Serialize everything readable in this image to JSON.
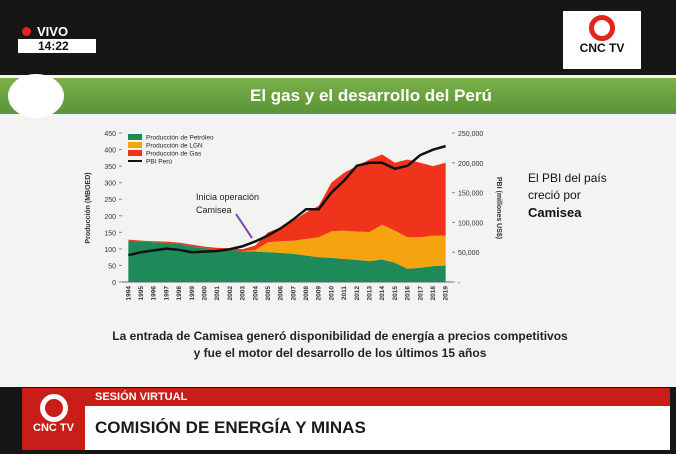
{
  "broadcast": {
    "live": "VIVO",
    "time": "14:22",
    "logo": "CNC TV"
  },
  "slide": {
    "title": "El gas y el desarrollo del Perú",
    "note": [
      "El PBI del país",
      "creció por",
      "Camisea"
    ],
    "caption": [
      "La entrada de Camisea generó disponibilidad de energía a precios competitivos",
      "y fue el motor del desarrollo de los últimos 15 años"
    ]
  },
  "lower_third": {
    "logo": "CNC TV",
    "kicker": "SESIÓN VIRTUAL",
    "headline": "COMISIÓN DE ENERGÍA Y MINAS"
  },
  "chart_data": {
    "type": "stacked_area_line",
    "annotation": [
      "Inicia operación",
      "Camisea"
    ],
    "y_label": "Producción (MBOED)",
    "y2_label": "PBI (millones US$)",
    "categories": [
      "1994",
      "1995",
      "1996",
      "1997",
      "1998",
      "1999",
      "2000",
      "2001",
      "2002",
      "2003",
      "2004",
      "2005",
      "2006",
      "2007",
      "2008",
      "2009",
      "2010",
      "2011",
      "2012",
      "2013",
      "2014",
      "2015",
      "2016",
      "2017",
      "2018",
      "2019"
    ],
    "series": [
      {
        "name": "Producción de Petróleo",
        "color": "#1e8a5a",
        "values": [
          125,
          122,
          120,
          118,
          115,
          108,
          102,
          98,
          97,
          93,
          92,
          90,
          88,
          85,
          80,
          75,
          73,
          70,
          67,
          63,
          68,
          58,
          40,
          43,
          48,
          50
        ]
      },
      {
        "name": "Producción de LGN",
        "color": "#f5a40f",
        "values": [
          0,
          0,
          0,
          0,
          0,
          0,
          0,
          0,
          0,
          0,
          5,
          30,
          35,
          40,
          50,
          60,
          80,
          85,
          85,
          88,
          105,
          97,
          95,
          92,
          92,
          90
        ]
      },
      {
        "name": "Producción de Gas",
        "color": "#f0341b",
        "values": [
          3,
          3,
          3,
          4,
          4,
          5,
          5,
          5,
          5,
          6,
          13,
          30,
          42,
          60,
          80,
          95,
          147,
          175,
          198,
          219,
          212,
          205,
          235,
          225,
          210,
          220
        ]
      },
      {
        "name": "PBI Perú",
        "color": "#111111",
        "axis": "y2",
        "values": [
          45000,
          50000,
          53000,
          56000,
          54000,
          50000,
          51000,
          52000,
          55000,
          60000,
          68000,
          78000,
          90000,
          105000,
          122000,
          122000,
          150000,
          170000,
          195000,
          200000,
          200000,
          190000,
          195000,
          213000,
          222000,
          228000
        ]
      }
    ],
    "ylim": [
      0,
      450
    ],
    "yticks": [
      0,
      50,
      100,
      150,
      200,
      250,
      300,
      350,
      400,
      450
    ],
    "y2lim": [
      0,
      250000
    ],
    "y2ticks": [
      {
        "value": 0,
        "label": "-"
      },
      {
        "value": 50000,
        "label": "50,000"
      },
      {
        "value": 100000,
        "label": "100,000"
      },
      {
        "value": 150000,
        "label": "150,000"
      },
      {
        "value": 200000,
        "label": "200,000"
      },
      {
        "value": 250000,
        "label": "250,000"
      }
    ]
  }
}
